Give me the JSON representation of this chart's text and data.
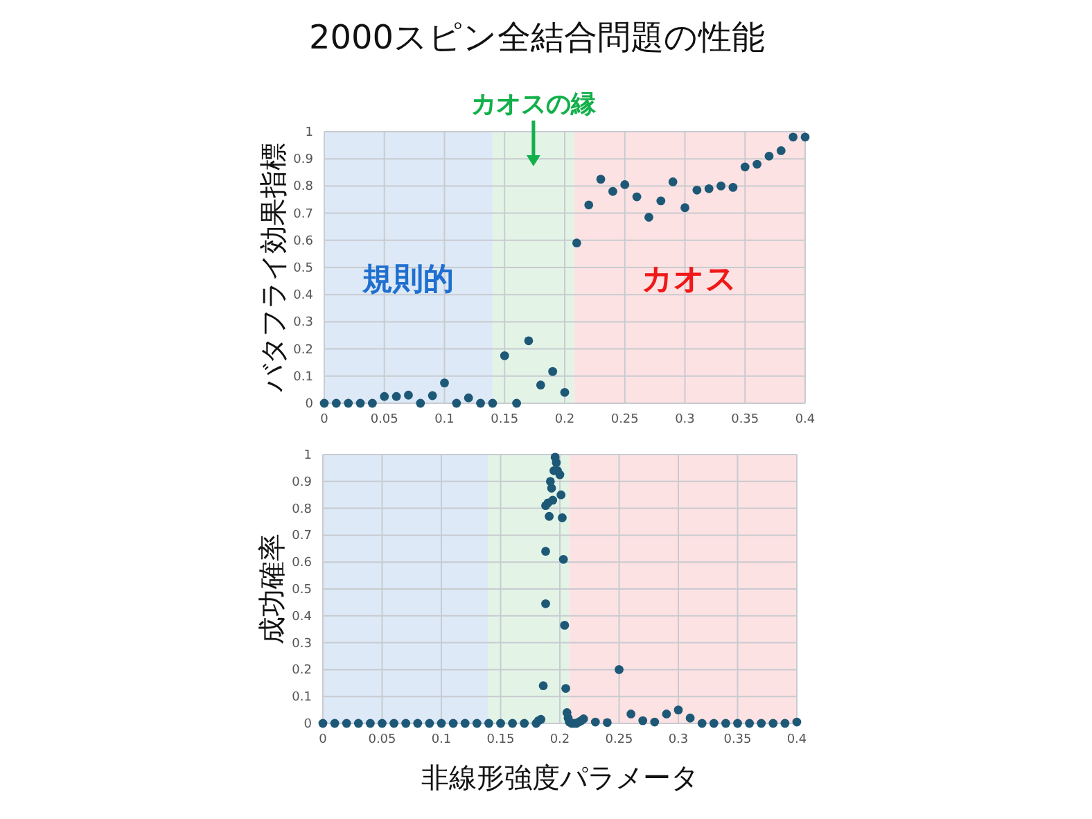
{
  "chart_data": [
    {
      "type": "scatter",
      "title": "2000スピン全結合問題の性能",
      "ylabel": "バタフライ効果指標",
      "x": [
        0,
        0.01,
        0.02,
        0.03,
        0.04,
        0.05,
        0.06,
        0.07,
        0.08,
        0.09,
        0.1,
        0.11,
        0.12,
        0.13,
        0.14,
        0.15,
        0.16,
        0.17,
        0.18,
        0.19,
        0.2,
        0.21,
        0.22,
        0.23,
        0.24,
        0.25,
        0.26,
        0.27,
        0.28,
        0.29,
        0.3,
        0.31,
        0.32,
        0.33,
        0.34,
        0.35,
        0.36,
        0.37,
        0.38,
        0.39,
        0.4
      ],
      "series": [
        {
          "color": "#1d5877",
          "values": [
            0,
            0,
            0,
            0,
            0,
            0.025,
            0.025,
            0.03,
            0,
            0.028,
            0.075,
            0,
            0.02,
            0,
            0,
            0.175,
            0,
            0.23,
            0.067,
            0.117,
            0.04,
            0.59,
            0.73,
            0.825,
            0.78,
            0.805,
            0.76,
            0.685,
            0.745,
            0.815,
            0.72,
            0.785,
            0.79,
            0.8,
            0.795,
            0.87,
            0.88,
            0.91,
            0.93,
            0.98,
            0.98
          ]
        }
      ],
      "xlim": [
        0,
        0.4
      ],
      "xticks": [
        0,
        0.05,
        0.1,
        0.15,
        0.2,
        0.25,
        0.3,
        0.35,
        0.4
      ],
      "ylim": [
        0,
        1
      ],
      "yticks": [
        0,
        0.1,
        0.2,
        0.3,
        0.4,
        0.5,
        0.6,
        0.7,
        0.8,
        0.9,
        1
      ],
      "grid": true,
      "marker": "circle",
      "bands": [
        {
          "axis": "x",
          "from": 0,
          "to": 0.14,
          "label": "規則的",
          "color": "#dde9f6"
        },
        {
          "axis": "x",
          "from": 0.14,
          "to": 0.208,
          "label": "カオスの縁",
          "color": "#e3f4e7"
        },
        {
          "axis": "x",
          "from": 0.208,
          "to": 0.4,
          "label": "カオス",
          "color": "#fde2e3"
        }
      ]
    },
    {
      "type": "scatter",
      "ylabel": "成功確率",
      "xlabel": "非線形強度パラメータ",
      "x": [
        0,
        0.01,
        0.02,
        0.03,
        0.04,
        0.05,
        0.06,
        0.07,
        0.08,
        0.09,
        0.1,
        0.11,
        0.12,
        0.13,
        0.14,
        0.15,
        0.16,
        0.17,
        0.18,
        0.182,
        0.184,
        0.186,
        0.188,
        0.188,
        0.188,
        0.19,
        0.191,
        0.192,
        0.193,
        0.194,
        0.195,
        0.196,
        0.197,
        0.198,
        0.2,
        0.201,
        0.202,
        0.203,
        0.204,
        0.205,
        0.206,
        0.207,
        0.208,
        0.21,
        0.212,
        0.214,
        0.216,
        0.218,
        0.22,
        0.23,
        0.24,
        0.25,
        0.26,
        0.27,
        0.28,
        0.29,
        0.3,
        0.31,
        0.32,
        0.33,
        0.34,
        0.35,
        0.36,
        0.37,
        0.38,
        0.39,
        0.4
      ],
      "series": [
        {
          "color": "#1d5877",
          "values": [
            0,
            0,
            0,
            0,
            0,
            0,
            0,
            0,
            0,
            0,
            0,
            0,
            0,
            0,
            0,
            0,
            0,
            0,
            0,
            0.01,
            0.015,
            0.14,
            0.445,
            0.64,
            0.81,
            0.82,
            0.77,
            0.9,
            0.875,
            0.83,
            0.94,
            0.99,
            0.97,
            0.94,
            0.925,
            0.85,
            0.765,
            0.61,
            0.365,
            0.13,
            0.04,
            0.02,
            0.005,
            0,
            0,
            0,
            0.005,
            0.01,
            0.017,
            0.005,
            0.003,
            0.2,
            0.035,
            0.01,
            0.005,
            0.035,
            0.05,
            0.02,
            0,
            0,
            0,
            0,
            0,
            0,
            0,
            0,
            0.005
          ]
        }
      ],
      "xlim": [
        0,
        0.4
      ],
      "xticks": [
        0,
        0.05,
        0.1,
        0.15,
        0.2,
        0.25,
        0.3,
        0.35,
        0.4
      ],
      "ylim": [
        0,
        1
      ],
      "yticks": [
        0,
        0.1,
        0.2,
        0.3,
        0.4,
        0.5,
        0.6,
        0.7,
        0.8,
        0.9,
        1
      ],
      "grid": true,
      "marker": "circle",
      "bands": [
        {
          "axis": "x",
          "from": 0,
          "to": 0.14,
          "color": "#dde9f6"
        },
        {
          "axis": "x",
          "from": 0.14,
          "to": 0.208,
          "color": "#e3f4e7"
        },
        {
          "axis": "x",
          "from": 0.208,
          "to": 0.4,
          "color": "#fde2e3"
        }
      ]
    }
  ]
}
